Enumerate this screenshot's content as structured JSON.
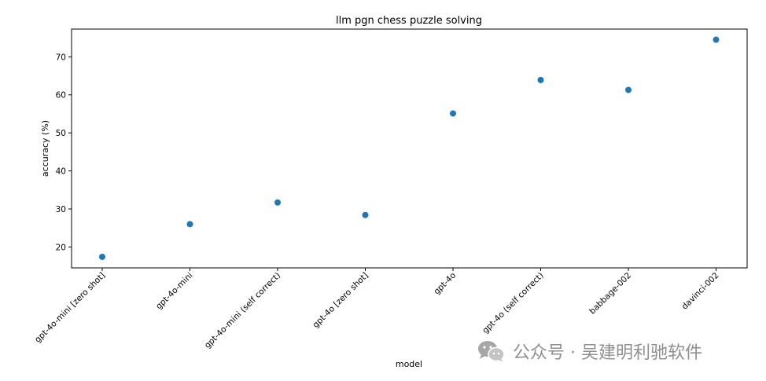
{
  "chart_data": {
    "type": "scatter",
    "title": "llm pgn chess puzzle solving",
    "xlabel": "model",
    "ylabel": "accuracy (%)",
    "categories": [
      "gpt-4o-mini [zero shot]",
      "gpt-4o-mini",
      "gpt-4o-mini (self correct)",
      "gpt-4o [zero shot]",
      "gpt-4o",
      "gpt-4o (self correct)",
      "babbage-002",
      "davinci-002"
    ],
    "values": [
      17.4,
      26.0,
      31.7,
      28.4,
      55.1,
      63.9,
      61.3,
      74.5
    ],
    "ylim": [
      14.5,
      77.3
    ],
    "yticks": [
      20,
      30,
      40,
      50,
      60,
      70
    ],
    "grid": false,
    "legend": "none",
    "marker_color": "#1f77b4"
  },
  "watermark": {
    "text": "公众号 · 吴建明利驰软件",
    "icon": "wechat-icon"
  }
}
